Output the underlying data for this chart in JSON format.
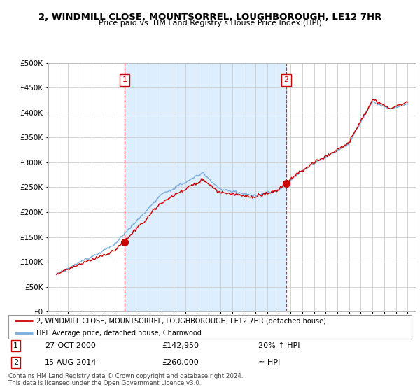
{
  "title": "2, WINDMILL CLOSE, MOUNTSORREL, LOUGHBOROUGH, LE12 7HR",
  "subtitle": "Price paid vs. HM Land Registry's House Price Index (HPI)",
  "sale1_date": "27-OCT-2000",
  "sale1_price": 142950,
  "sale1_label": "20% ↑ HPI",
  "sale2_date": "15-AUG-2014",
  "sale2_price": 260000,
  "sale2_label": "≈ HPI",
  "legend_line1": "2, WINDMILL CLOSE, MOUNTSORREL, LOUGHBOROUGH, LE12 7HR (detached house)",
  "legend_line2": "HPI: Average price, detached house, Charnwood",
  "footer1": "Contains HM Land Registry data © Crown copyright and database right 2024.",
  "footer2": "This data is licensed under the Open Government Licence v3.0.",
  "red_color": "#cc0000",
  "blue_color": "#7aaddc",
  "shade_color": "#ddeeff",
  "annotation_box_color": "#cc0000",
  "ylim": [
    0,
    500000
  ],
  "yticks": [
    0,
    50000,
    100000,
    150000,
    200000,
    250000,
    300000,
    350000,
    400000,
    450000,
    500000
  ],
  "sale1_x": 2000.82,
  "sale2_x": 2014.62
}
